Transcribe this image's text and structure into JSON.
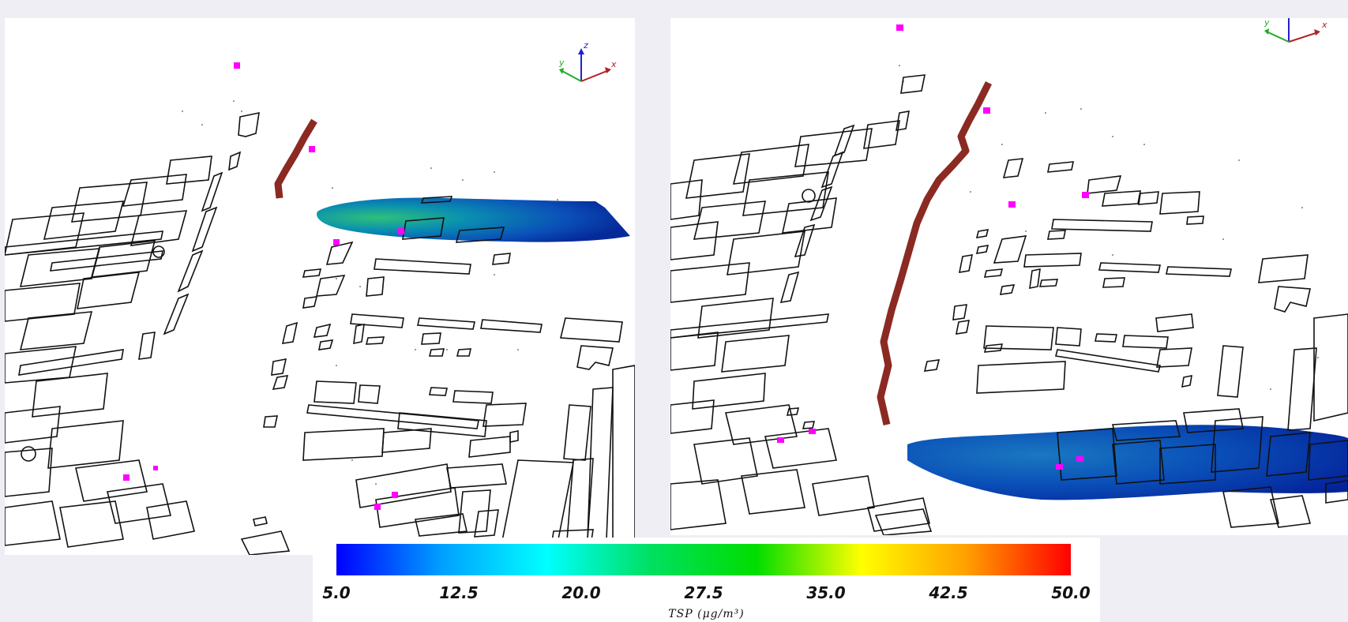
{
  "colorbar": {
    "title": "TSP (μg/m³)",
    "tick_labels": [
      "5.0",
      "12.5",
      "20.0",
      "27.5",
      "35.0",
      "42.5",
      "50.0"
    ],
    "min": 5.0,
    "max": 50.0,
    "colors": [
      "#0000ff",
      "#00a0ff",
      "#00ffff",
      "#00e060",
      "#00dd00",
      "#ffff00",
      "#ffa000",
      "#ff0000"
    ]
  },
  "axes_triad": {
    "x_label": "x",
    "y_label": "y",
    "z_label": "z",
    "x_color": "#b22222",
    "y_color": "#22aa22",
    "z_color": "#2222cc"
  },
  "colors": {
    "road": "#8b2a22",
    "sensor": "#ff00ff",
    "building_outline": "#111111"
  }
}
